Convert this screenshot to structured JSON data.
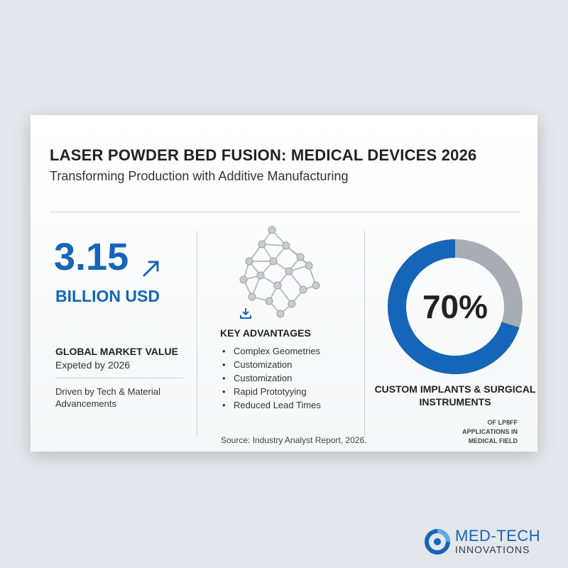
{
  "header": {
    "title": "LASER POWDER BED FUSION: MEDICAL DEVICES 2026",
    "subtitle": "Transforming Production with Additive Manufacturing"
  },
  "market": {
    "value": "3.15",
    "unit": "BILLION USD",
    "label": "GLOBAL MARKET VALUE",
    "sublabel": "Expeted by 2026",
    "driver": "Driven by Tech & Material Advancements",
    "arrow_icon": "trend-up-arrow-icon"
  },
  "advantages": {
    "heading": "KEY ADVANTAGES",
    "bullet": "•",
    "items": [
      "Complex Geometries",
      "Customization",
      "Customization",
      "Rapid Prototyying",
      "Reduced Lead Times"
    ],
    "network_icon": "lattice-structure-icon",
    "download_icon": "download-icon"
  },
  "source": "Source: Industry Analyst Report, 2026.",
  "donut": {
    "percent_label": "70%",
    "percent_value": 70,
    "label": "CUSTOM IMPLANTS & SURGICAL INSTRUMENTS",
    "footnote": "OF LP8FF APPLICATIONS IN MEDICAL FIELD",
    "colors": {
      "primary": "#1565b8",
      "secondary": "#a8adb3"
    }
  },
  "brand": {
    "name_top": "MED-TECH",
    "name_bottom": "INNOVATIONS",
    "logo_icon": "med-tech-logo-icon"
  },
  "colors": {
    "accent": "#1565b8",
    "text": "#222222",
    "background": "#e3e6ea"
  }
}
